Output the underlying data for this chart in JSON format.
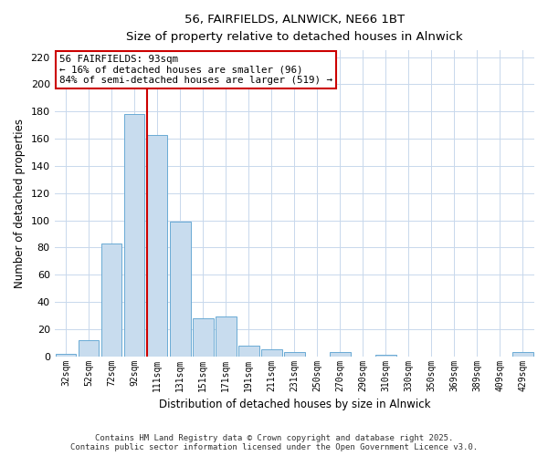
{
  "title": "56, FAIRFIELDS, ALNWICK, NE66 1BT",
  "subtitle": "Size of property relative to detached houses in Alnwick",
  "xlabel": "Distribution of detached houses by size in Alnwick",
  "ylabel": "Number of detached properties",
  "bar_labels": [
    "32sqm",
    "52sqm",
    "72sqm",
    "92sqm",
    "111sqm",
    "131sqm",
    "151sqm",
    "171sqm",
    "191sqm",
    "211sqm",
    "231sqm",
    "250sqm",
    "270sqm",
    "290sqm",
    "310sqm",
    "330sqm",
    "350sqm",
    "369sqm",
    "389sqm",
    "409sqm",
    "429sqm"
  ],
  "bar_values": [
    2,
    12,
    83,
    178,
    163,
    99,
    28,
    29,
    8,
    5,
    3,
    0,
    3,
    0,
    1,
    0,
    0,
    0,
    0,
    0,
    3
  ],
  "bar_color": "#c8dcee",
  "bar_edge_color": "#6aaad4",
  "vline_color": "#cc0000",
  "annotation_text": "56 FAIRFIELDS: 93sqm\n← 16% of detached houses are smaller (96)\n84% of semi-detached houses are larger (519) →",
  "annotation_box_color": "#ffffff",
  "annotation_box_edge": "#cc0000",
  "ylim": [
    0,
    225
  ],
  "yticks": [
    0,
    20,
    40,
    60,
    80,
    100,
    120,
    140,
    160,
    180,
    200,
    220
  ],
  "footer": "Contains HM Land Registry data © Crown copyright and database right 2025.\nContains public sector information licensed under the Open Government Licence v3.0.",
  "background_color": "#ffffff",
  "grid_color": "#c8d8ec"
}
